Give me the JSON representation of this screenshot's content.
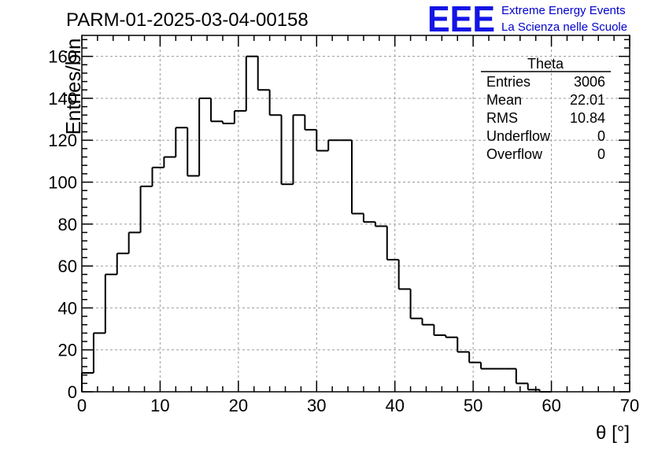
{
  "header": {
    "run_title": "PARM-01-2025-03-04-00158",
    "logo_text": "EEE",
    "org_line1": "Extreme Energy Events",
    "org_line2": "La Scienza nelle Scuole"
  },
  "stats": {
    "title": "Theta",
    "rows": [
      {
        "label": "Entries",
        "value": "3006"
      },
      {
        "label": "Mean",
        "value": "22.01"
      },
      {
        "label": "RMS",
        "value": "10.84"
      },
      {
        "label": "Underflow",
        "value": "0"
      },
      {
        "label": "Overflow",
        "value": "0"
      }
    ]
  },
  "colors": {
    "logo": "#1414e6",
    "org_text": "#0000cc",
    "grid": "#9a9a9a",
    "line": "#000000"
  },
  "chart_data": {
    "type": "histogram",
    "title": "PARM-01-2025-03-04-00158",
    "xlabel": "θ [°]",
    "ylabel": "Entries/bin",
    "xlim": [
      0,
      70
    ],
    "ylim": [
      0,
      170
    ],
    "bin_width": 1.5,
    "x_start": 0,
    "values": [
      9,
      28,
      56,
      66,
      76,
      98,
      107,
      112,
      126,
      103,
      140,
      129,
      128,
      134,
      160,
      144,
      132,
      99,
      132,
      125,
      115,
      120,
      120,
      85,
      81,
      79,
      63,
      49,
      35,
      32,
      27,
      26,
      19,
      14,
      11,
      11,
      11,
      4,
      1,
      0
    ],
    "x_ticks": [
      "0",
      "10",
      "20",
      "30",
      "40",
      "50",
      "60",
      "70"
    ],
    "x_tick_values": [
      0,
      10,
      20,
      30,
      40,
      50,
      60,
      70
    ],
    "y_ticks": [
      "0",
      "20",
      "40",
      "60",
      "80",
      "100",
      "120",
      "140",
      "160"
    ],
    "y_tick_values": [
      0,
      20,
      40,
      60,
      80,
      100,
      120,
      140,
      160
    ],
    "grid": true
  }
}
